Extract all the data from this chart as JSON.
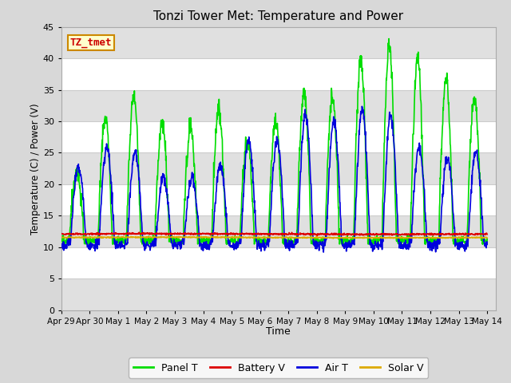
{
  "title": "Tonzi Tower Met: Temperature and Power",
  "xlabel": "Time",
  "ylabel": "Temperature (C) / Power (V)",
  "ylim": [
    0,
    45
  ],
  "yticks": [
    0,
    5,
    10,
    15,
    20,
    25,
    30,
    35,
    40,
    45
  ],
  "x_start_day": 0,
  "x_end_day": 15.3,
  "xtick_labels": [
    "Apr 29",
    "Apr 30",
    "May 1",
    "May 2",
    "May 3",
    "May 4",
    "May 5",
    "May 6",
    "May 7",
    "May 8",
    "May 9",
    "May 10",
    "May 11",
    "May 12",
    "May 13",
    "May 14"
  ],
  "xtick_positions": [
    0,
    1,
    2,
    3,
    4,
    5,
    6,
    7,
    8,
    9,
    10,
    11,
    12,
    13,
    14,
    15
  ],
  "fig_bg_color": "#d8d8d8",
  "plot_bg_color": "#ffffff",
  "band_color": "#e0e0e0",
  "grid_color": "#cccccc",
  "series": {
    "panel_t": {
      "label": "Panel T",
      "color": "#00dd00",
      "linewidth": 1.2
    },
    "battery_v": {
      "label": "Battery V",
      "color": "#dd0000",
      "linewidth": 1.2
    },
    "air_t": {
      "label": "Air T",
      "color": "#0000dd",
      "linewidth": 1.2
    },
    "solar_v": {
      "label": "Solar V",
      "color": "#ddaa00",
      "linewidth": 1.2
    }
  },
  "annotation": {
    "text": "TZ_tmet",
    "fontsize": 9,
    "color": "#cc0000",
    "bg": "#ffffcc",
    "border_color": "#cc8800",
    "linewidth": 1.5
  }
}
